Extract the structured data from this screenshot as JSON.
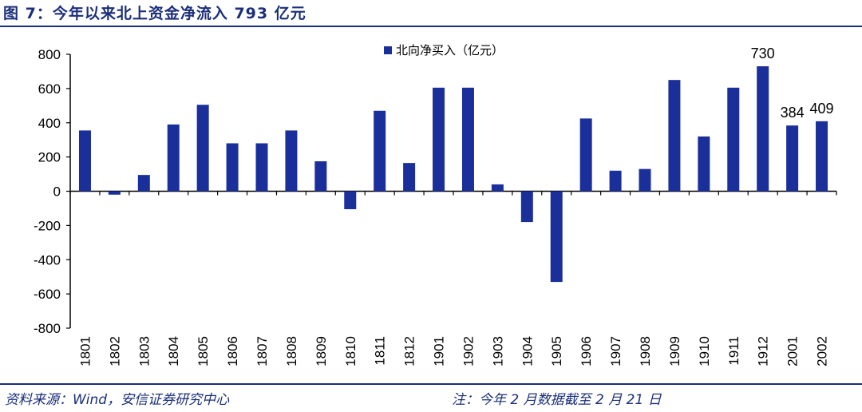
{
  "header": {
    "title": "图 7：今年以来北上资金净流入 793 亿元"
  },
  "footer": {
    "source": "资料来源：Wind，安信证券研究中心",
    "note": "注：今年 2 月数据截至 2 月 21 日"
  },
  "colors": {
    "bar": "#1b2f9a",
    "brand": "#1b2f7a"
  },
  "chart_data": {
    "type": "bar",
    "categories": [
      "1801",
      "1802",
      "1803",
      "1804",
      "1805",
      "1806",
      "1807",
      "1808",
      "1809",
      "1810",
      "1811",
      "1812",
      "1901",
      "1902",
      "1903",
      "1904",
      "1905",
      "1906",
      "1907",
      "1908",
      "1909",
      "1910",
      "1911",
      "1912",
      "2001",
      "2002"
    ],
    "series": [
      {
        "name": "北向净买入（亿元）",
        "values": [
          355,
          -20,
          95,
          390,
          505,
          280,
          280,
          355,
          175,
          -105,
          470,
          165,
          605,
          605,
          40,
          -180,
          -530,
          425,
          120,
          130,
          650,
          320,
          605,
          730,
          384,
          409
        ]
      }
    ],
    "data_labels": [
      {
        "category": "1912",
        "text": "730"
      },
      {
        "category": "2001",
        "text": "384"
      },
      {
        "category": "2002",
        "text": "409"
      }
    ],
    "y_ticks": [
      "800",
      "600",
      "400",
      "200",
      "0",
      "-200",
      "-400",
      "-600",
      "-800"
    ],
    "ylim": [
      -800,
      800
    ],
    "xlabel": "",
    "ylabel": "",
    "legend_position": "top-center",
    "grid": false
  }
}
